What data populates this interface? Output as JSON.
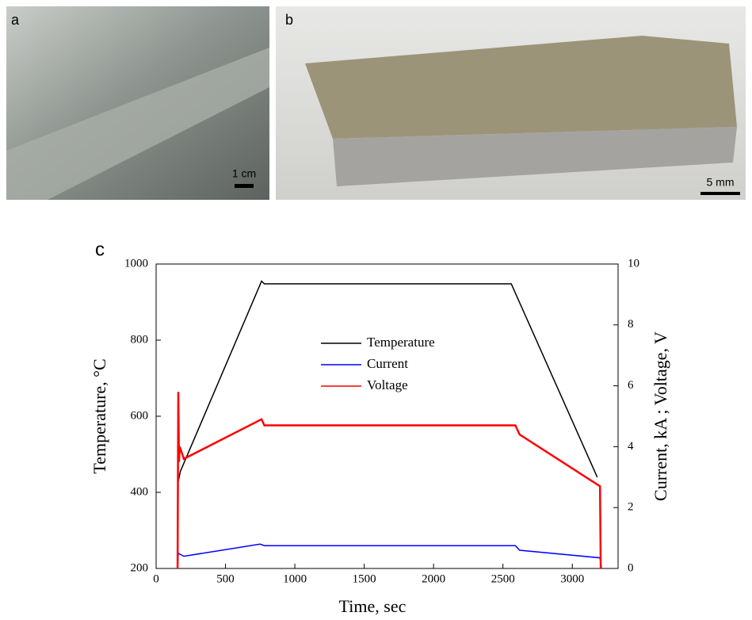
{
  "panels": [
    {
      "label": "a",
      "scale_bar": "1 cm"
    },
    {
      "label": "b",
      "scale_bar": "5 mm"
    }
  ],
  "chart_data": {
    "type": "line",
    "panel_label": "c",
    "x_label": "Time, sec",
    "y_label": "Temperature, °C",
    "y2_label": "Current, kA ; Voltage, V",
    "xlim": [
      0,
      3330
    ],
    "xticks": [
      0,
      500,
      1000,
      1500,
      2000,
      2500,
      3000
    ],
    "ylim": [
      200,
      1000
    ],
    "yticks": [
      200,
      400,
      600,
      800,
      1000
    ],
    "y2lim": [
      0,
      10
    ],
    "y2ticks": [
      0,
      2,
      4,
      6,
      8,
      10
    ],
    "series": [
      {
        "name": "Temperature",
        "color": "#000000",
        "x": [
          160,
          175,
          760,
          780,
          2560,
          3180
        ],
        "values": [
          430,
          455,
          955,
          948,
          948,
          440
        ]
      },
      {
        "name": "Current",
        "color": "#0000ff",
        "axis": "y2",
        "x": [
          155,
          160,
          200,
          750,
          780,
          2590,
          2620,
          3200,
          3210
        ],
        "values": [
          0,
          0.5,
          0.4,
          0.8,
          0.75,
          0.75,
          0.6,
          0.35,
          0
        ]
      },
      {
        "name": "Voltage",
        "color": "#ff0000",
        "axis": "y2",
        "x": [
          155,
          160,
          165,
          170,
          200,
          760,
          780,
          2590,
          2620,
          3200,
          3205
        ],
        "values": [
          0,
          5.8,
          3.5,
          4.0,
          3.6,
          4.9,
          4.7,
          4.7,
          4.4,
          2.7,
          0
        ]
      }
    ]
  }
}
